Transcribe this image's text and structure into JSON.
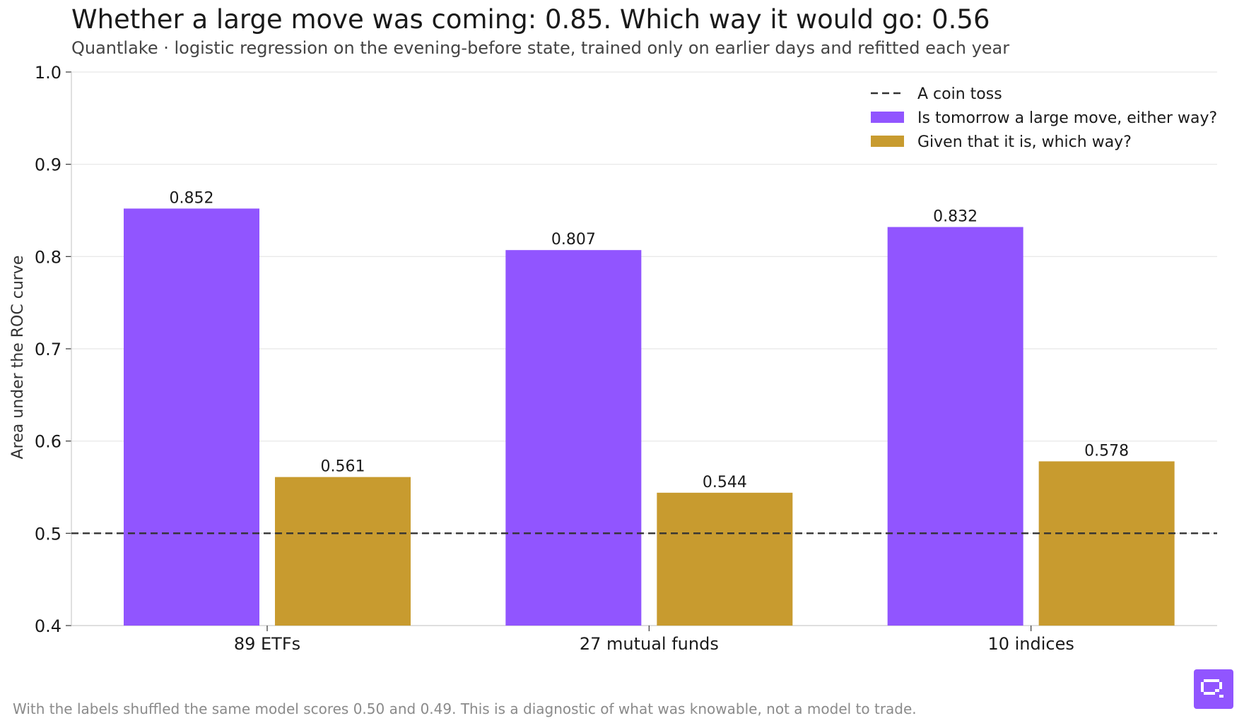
{
  "header": {
    "title": "Whether a large move was coming: 0.85. Which way it would go: 0.56",
    "subtitle": "Quantlake · logistic regression on the evening-before state, trained only on earlier days and refitted each year"
  },
  "footer": {
    "note": "With the labels shuffled the same model scores 0.50 and 0.49. This is a diagnostic of what was knowable, not a model to trade."
  },
  "logo": {
    "icon": "quantlake-logo-icon",
    "color": "#9155ff"
  },
  "chart_data": {
    "type": "bar",
    "title": "Whether a large move was coming: 0.85. Which way it would go: 0.56",
    "xlabel": "",
    "ylabel": "Area under the ROC curve",
    "ylim": [
      0.4,
      1.0
    ],
    "yticks": [
      0.4,
      0.5,
      0.6,
      0.7,
      0.8,
      0.9,
      1.0
    ],
    "ytick_labels": [
      "0.4",
      "0.5",
      "0.6",
      "0.7",
      "0.8",
      "0.9",
      "1.0"
    ],
    "categories": [
      "89 ETFs",
      "27 mutual funds",
      "10 indices"
    ],
    "series": [
      {
        "name": "Is tomorrow a large move, either way?",
        "color": "#9155ff",
        "values": [
          0.852,
          0.807,
          0.832
        ],
        "labels": [
          "0.852",
          "0.807",
          "0.832"
        ]
      },
      {
        "name": "Given that it is, which way?",
        "color": "#c89b2f",
        "values": [
          0.561,
          0.544,
          0.578
        ],
        "labels": [
          "0.561",
          "0.544",
          "0.578"
        ]
      }
    ],
    "reference_line": {
      "name": "A coin toss",
      "y": 0.5,
      "style": "dashed",
      "color": "#333333"
    },
    "grid": true,
    "legend_position": "top-right"
  }
}
